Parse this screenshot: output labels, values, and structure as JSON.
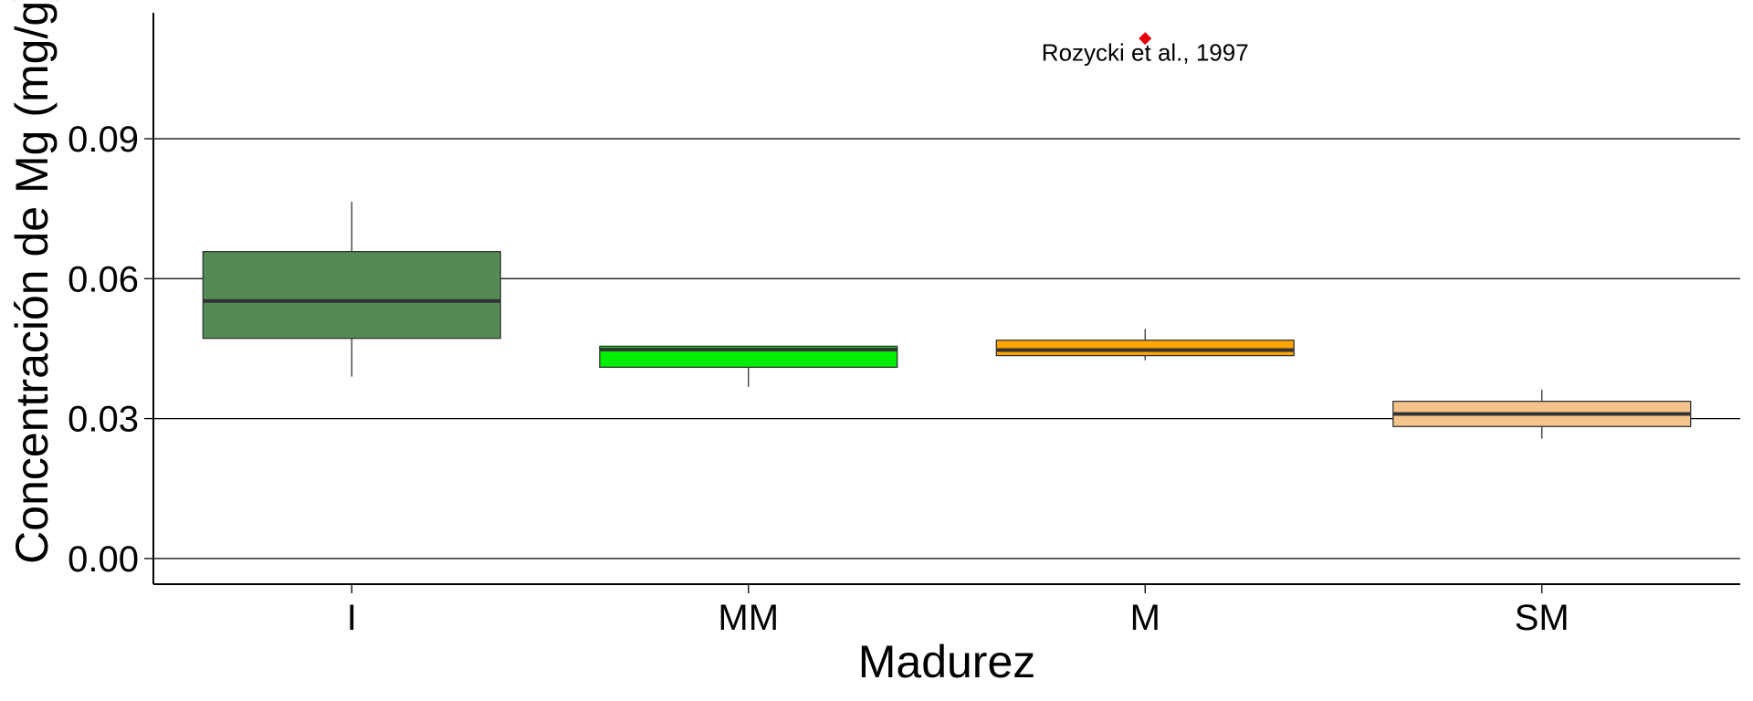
{
  "chart_data": {
    "type": "boxplot",
    "title": "",
    "xlabel": "Madurez",
    "ylabel": "Concentración de Mg (mg/g)",
    "categories": [
      "I",
      "MM",
      "M",
      "SM"
    ],
    "ylim": [
      -0.0055,
      0.117
    ],
    "yticks": [
      0.0,
      0.03,
      0.06,
      0.09
    ],
    "ytick_labels": [
      "0.00",
      "0.03",
      "0.06",
      "0.09"
    ],
    "grid": "horizontal major lines",
    "legend": "none",
    "boxes": [
      {
        "category": "I",
        "whisker_low": 0.039,
        "q1": 0.0472,
        "median": 0.0552,
        "q3": 0.0658,
        "whisker_high": 0.0765,
        "color": "#548B54"
      },
      {
        "category": "MM",
        "whisker_low": 0.0368,
        "q1": 0.041,
        "median": 0.0448,
        "q3": 0.0455,
        "whisker_high": 0.0455,
        "color": "#00EE00"
      },
      {
        "category": "M",
        "whisker_low": 0.0425,
        "q1": 0.0435,
        "median": 0.0447,
        "q3": 0.0468,
        "whisker_high": 0.0492,
        "color": "#FFA500"
      },
      {
        "category": "SM",
        "whisker_low": 0.0257,
        "q1": 0.0283,
        "median": 0.031,
        "q3": 0.0337,
        "whisker_high": 0.0362,
        "color": "#F4C48C"
      }
    ],
    "reference_points": [
      {
        "x": "M",
        "y": 0.1115,
        "color": "#E8000B",
        "shape": "diamond"
      }
    ],
    "annotations": [
      {
        "text": "Rozycki et al., 1997",
        "x": "M",
        "y": 0.1085
      }
    ]
  }
}
